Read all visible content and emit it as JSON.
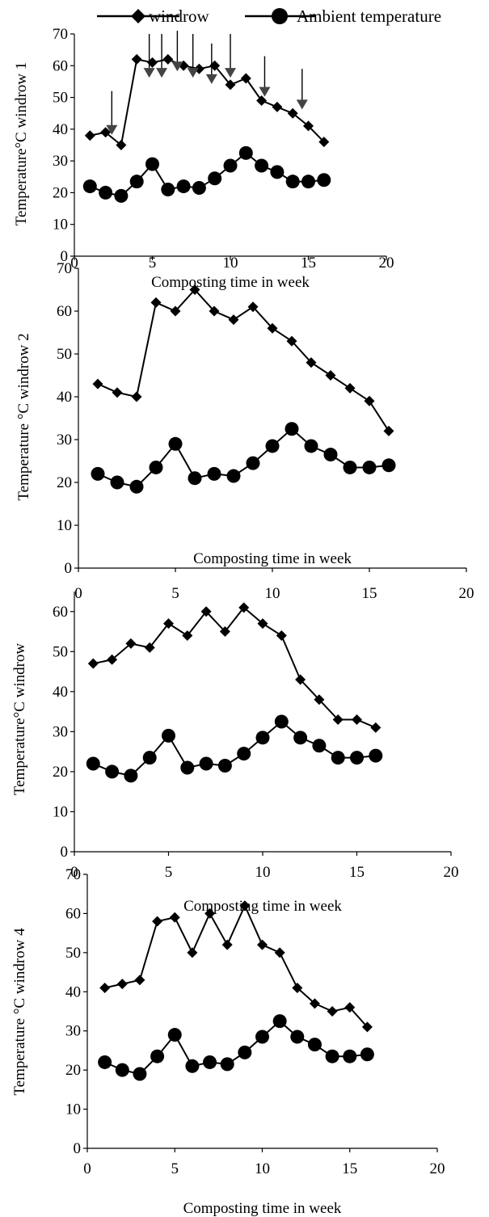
{
  "legend": {
    "items": [
      {
        "label": "windrow",
        "marker": "diamond"
      },
      {
        "label": "Ambient temperature",
        "marker": "circle"
      }
    ]
  },
  "colors": {
    "ink": "#000000",
    "background": "#ffffff"
  },
  "chart_data": [
    {
      "type": "line",
      "ylabel": "Temperature°C windrow 1",
      "xlabel": "Composting time in week",
      "xlim": [
        0,
        20
      ],
      "ylim": [
        0,
        70
      ],
      "xticks": [
        0,
        5,
        10,
        15,
        20
      ],
      "yticks": [
        0,
        10,
        20,
        30,
        40,
        50,
        60,
        70
      ],
      "grid": false,
      "series": [
        {
          "name": "windrow",
          "marker": "diamond",
          "x": [
            1,
            2,
            3,
            4,
            5,
            6,
            7,
            8,
            9,
            10,
            11,
            12,
            13,
            14,
            15,
            16
          ],
          "y": [
            38,
            39,
            35,
            62,
            61,
            62,
            60,
            59,
            60,
            54,
            56,
            49,
            47,
            45,
            41,
            36
          ]
        },
        {
          "name": "Ambient temperature",
          "marker": "circle",
          "x": [
            1,
            2,
            3,
            4,
            5,
            6,
            7,
            8,
            9,
            10,
            11,
            12,
            13,
            14,
            15,
            16
          ],
          "y": [
            22,
            20,
            19,
            23.5,
            29,
            21,
            22,
            21.5,
            24.5,
            28.5,
            32.5,
            28.5,
            26.5,
            23.5,
            23.5,
            24
          ]
        }
      ],
      "annotations": [
        {
          "type": "arrow",
          "x": 2.4,
          "y_from": 52,
          "y_to": 39
        },
        {
          "type": "arrow",
          "x": 4.8,
          "y_from": 70,
          "y_to": 57
        },
        {
          "type": "arrow",
          "x": 5.6,
          "y_from": 70,
          "y_to": 57
        },
        {
          "type": "arrow",
          "x": 6.6,
          "y_from": 71,
          "y_to": 59
        },
        {
          "type": "arrow",
          "x": 7.6,
          "y_from": 70,
          "y_to": 57
        },
        {
          "type": "arrow",
          "x": 8.8,
          "y_from": 67,
          "y_to": 55
        },
        {
          "type": "arrow",
          "x": 10.0,
          "y_from": 70,
          "y_to": 57
        },
        {
          "type": "arrow",
          "x": 12.2,
          "y_from": 63,
          "y_to": 51
        },
        {
          "type": "arrow",
          "x": 14.6,
          "y_from": 59,
          "y_to": 47
        }
      ]
    },
    {
      "type": "line",
      "ylabel": "Temperature °C windrow 2",
      "xlabel": "Composting time in week",
      "xlim": [
        0,
        20
      ],
      "ylim": [
        0,
        70
      ],
      "xticks": [
        0,
        5,
        10,
        15,
        20
      ],
      "yticks": [
        0,
        10,
        20,
        30,
        40,
        50,
        60,
        70
      ],
      "grid": false,
      "series": [
        {
          "name": "windrow",
          "marker": "diamond",
          "x": [
            1,
            2,
            3,
            4,
            5,
            6,
            7,
            8,
            9,
            10,
            11,
            12,
            13,
            14,
            15,
            16
          ],
          "y": [
            43,
            41,
            40,
            62,
            60,
            65,
            60,
            58,
            61,
            56,
            53,
            48,
            45,
            42,
            39,
            32
          ]
        },
        {
          "name": "Ambient temperature",
          "marker": "circle",
          "x": [
            1,
            2,
            3,
            4,
            5,
            6,
            7,
            8,
            9,
            10,
            11,
            12,
            13,
            14,
            15,
            16
          ],
          "y": [
            22,
            20,
            19,
            23.5,
            29,
            21,
            22,
            21.5,
            24.5,
            28.5,
            32.5,
            28.5,
            26.5,
            23.5,
            23.5,
            24
          ]
        }
      ]
    },
    {
      "type": "line",
      "ylabel": "Temperature°C windrow",
      "xlabel": "Composting time in week",
      "xlim": [
        0,
        20
      ],
      "ylim": [
        0,
        65
      ],
      "xticks": [
        0,
        5,
        10,
        15,
        20
      ],
      "yticks": [
        0,
        10,
        20,
        30,
        40,
        50,
        60
      ],
      "grid": false,
      "series": [
        {
          "name": "windrow",
          "marker": "diamond",
          "x": [
            1,
            2,
            3,
            4,
            5,
            6,
            7,
            8,
            9,
            10,
            11,
            12,
            13,
            14,
            15,
            16
          ],
          "y": [
            47,
            48,
            52,
            51,
            57,
            54,
            60,
            55,
            61,
            57,
            54,
            43,
            38,
            33,
            33,
            31
          ]
        },
        {
          "name": "Ambient temperature",
          "marker": "circle",
          "x": [
            1,
            2,
            3,
            4,
            5,
            6,
            7,
            8,
            9,
            10,
            11,
            12,
            13,
            14,
            15,
            16
          ],
          "y": [
            22,
            20,
            19,
            23.5,
            29,
            21,
            22,
            21.5,
            24.5,
            28.5,
            32.5,
            28.5,
            26.5,
            23.5,
            23.5,
            24
          ]
        }
      ]
    },
    {
      "type": "line",
      "ylabel": "Temperature °C windrow 4",
      "xlabel": "Composting time in week",
      "xlim": [
        0,
        20
      ],
      "ylim": [
        0,
        70
      ],
      "xticks": [
        0,
        5,
        10,
        15,
        20
      ],
      "yticks": [
        0,
        10,
        20,
        30,
        40,
        50,
        60,
        70
      ],
      "grid": false,
      "series": [
        {
          "name": "windrow",
          "marker": "diamond",
          "x": [
            1,
            2,
            3,
            4,
            5,
            6,
            7,
            8,
            9,
            10,
            11,
            12,
            13,
            14,
            15,
            16
          ],
          "y": [
            41,
            42,
            43,
            58,
            59,
            50,
            60,
            52,
            62,
            52,
            50,
            41,
            37,
            35,
            36,
            31
          ]
        },
        {
          "name": "Ambient temperature",
          "marker": "circle",
          "x": [
            1,
            2,
            3,
            4,
            5,
            6,
            7,
            8,
            9,
            10,
            11,
            12,
            13,
            14,
            15,
            16
          ],
          "y": [
            22,
            20,
            19,
            23.5,
            29,
            21,
            22,
            21.5,
            24.5,
            28.5,
            32.5,
            28.5,
            26.5,
            23.5,
            23.5,
            24
          ]
        }
      ]
    }
  ]
}
